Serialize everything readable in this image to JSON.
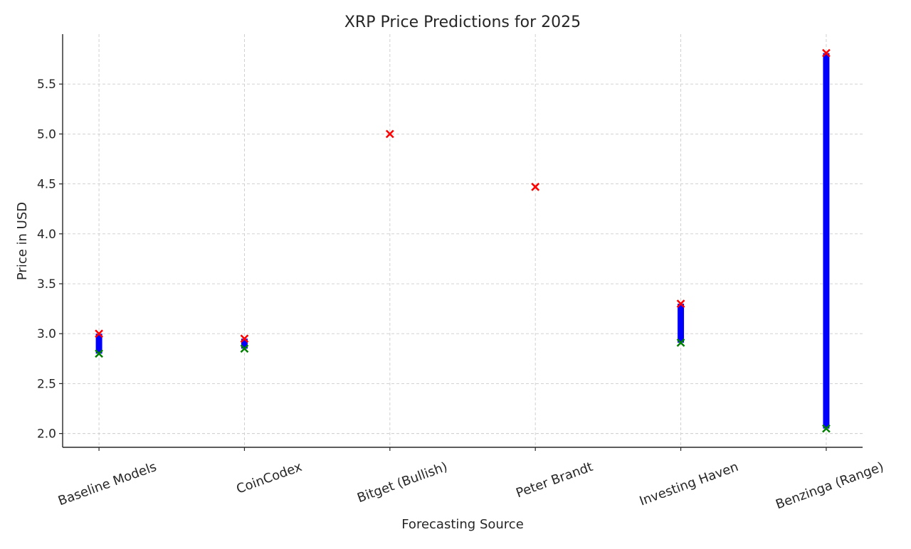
{
  "chart_data": {
    "type": "scatter",
    "title": "XRP Price Predictions for 2025",
    "xlabel": "Forecasting Source",
    "ylabel": "Price in USD",
    "ylim": [
      1.862,
      6.0
    ],
    "yticks": [
      2.0,
      2.5,
      3.0,
      3.5,
      4.0,
      4.5,
      5.0,
      5.5
    ],
    "ytick_labels": [
      "2.0",
      "2.5",
      "3.0",
      "3.5",
      "4.0",
      "4.5",
      "5.0",
      "5.5"
    ],
    "grid": true,
    "categories": [
      "Baseline Models",
      "CoinCodex",
      "Bitget (Bullish)",
      "Peter Brandt",
      "Investing Haven",
      "Benzinga (Range)"
    ],
    "low": [
      2.8,
      2.85,
      null,
      null,
      2.91,
      2.05
    ],
    "high": [
      3.0,
      2.95,
      5.0,
      4.47,
      3.3,
      5.81
    ],
    "colors": {
      "range": "#0000ff",
      "high": "#ff0000",
      "low": "#008000",
      "grid": "#cccccc",
      "axis": "#262626"
    }
  }
}
